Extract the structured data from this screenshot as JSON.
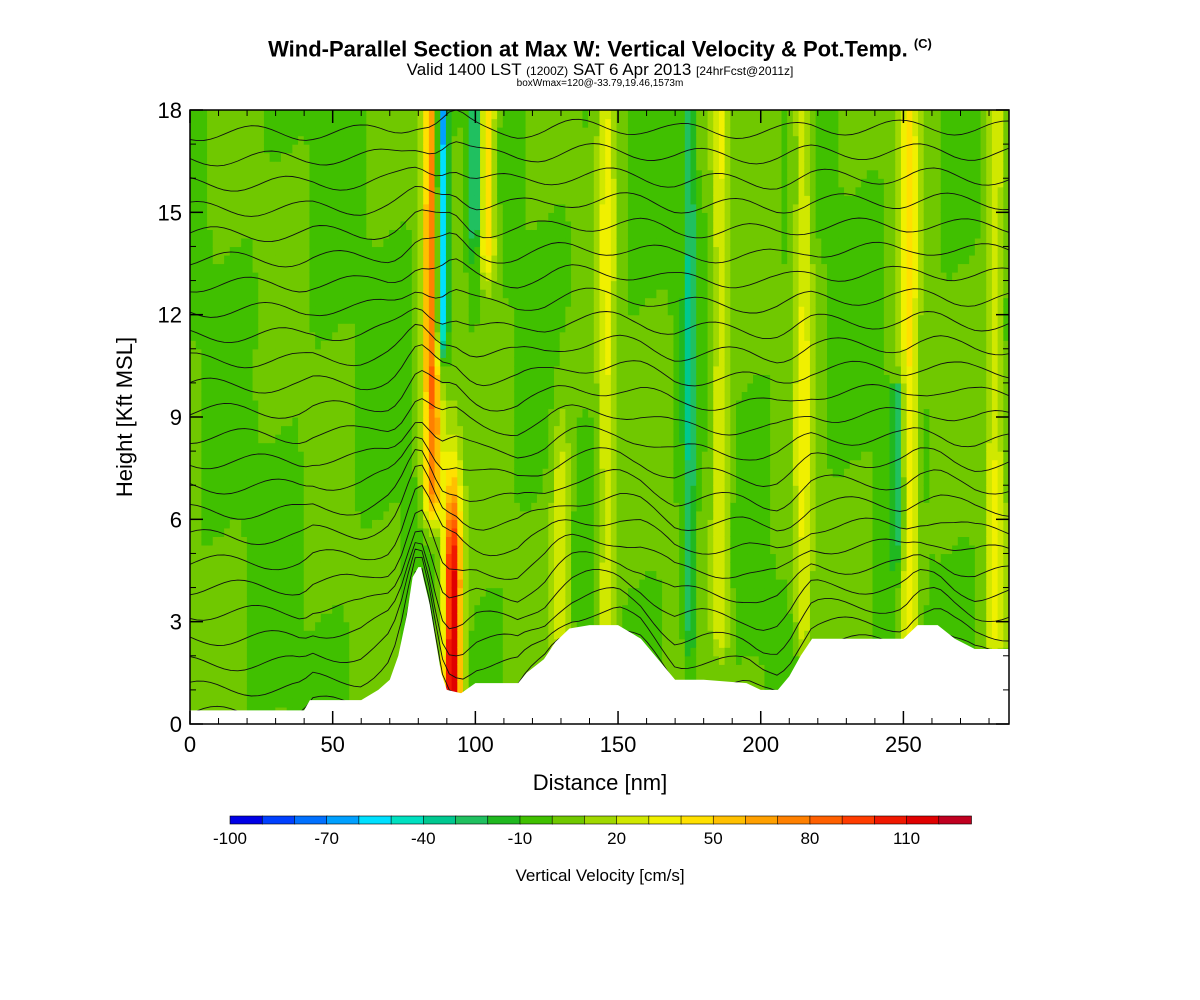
{
  "header": {
    "title": "Wind-Parallel Section at Max W: Vertical Velocity & Pot.Temp.",
    "title_mark": "(C)",
    "subtitle_a": "Valid 1400 LST",
    "subtitle_b": "(1200Z)",
    "subtitle_c": "SAT 6 Apr 2013",
    "subtitle_d": "[24hrFcst@2011z]",
    "subtitle2": "boxWmax=120@-33.79,19.46,1573m"
  },
  "chart_data": {
    "type": "heatmap",
    "xlabel": "Distance [nm]",
    "ylabel": "Height [Kft MSL]",
    "xlim": [
      0,
      287
    ],
    "ylim": [
      0,
      18
    ],
    "x_ticks": [
      0,
      50,
      100,
      150,
      200,
      250
    ],
    "y_ticks": [
      0,
      3,
      6,
      9,
      12,
      15,
      18
    ],
    "colorbar": {
      "label": "Vertical Velocity [cm/s]",
      "levels": [
        -100,
        -90,
        -80,
        -70,
        -60,
        -50,
        -40,
        -30,
        -20,
        -10,
        0,
        10,
        20,
        30,
        40,
        50,
        60,
        70,
        80,
        90,
        100,
        110,
        120,
        130
      ],
      "tick_labels": [
        "-100",
        "-70",
        "-40",
        "-10",
        "20",
        "50",
        "80",
        "110"
      ],
      "colors": [
        "#0000e6",
        "#0040ff",
        "#0070ff",
        "#00a0ff",
        "#00e0ff",
        "#00e0c0",
        "#00c890",
        "#20c060",
        "#20b820",
        "#40c000",
        "#70c800",
        "#a0d800",
        "#d0e800",
        "#f0f000",
        "#ffe000",
        "#ffc000",
        "#ffa000",
        "#ff8000",
        "#ff6000",
        "#ff3c00",
        "#f01800",
        "#e00000",
        "#c00020"
      ]
    },
    "terrain_kft": [
      [
        0,
        0.4
      ],
      [
        40,
        0.4
      ],
      [
        42,
        0.7
      ],
      [
        60,
        0.7
      ],
      [
        66,
        1.0
      ],
      [
        70,
        1.3
      ],
      [
        73,
        2.0
      ],
      [
        76,
        3.2
      ],
      [
        78,
        4.3
      ],
      [
        80,
        4.6
      ],
      [
        81,
        4.6
      ],
      [
        82,
        4.2
      ],
      [
        84,
        3.5
      ],
      [
        86,
        2.5
      ],
      [
        88,
        1.5
      ],
      [
        90,
        1.0
      ],
      [
        95,
        0.9
      ],
      [
        100,
        1.2
      ],
      [
        115,
        1.2
      ],
      [
        118,
        1.5
      ],
      [
        124,
        1.9
      ],
      [
        128,
        2.4
      ],
      [
        133,
        2.8
      ],
      [
        140,
        2.9
      ],
      [
        150,
        2.9
      ],
      [
        158,
        2.5
      ],
      [
        165,
        1.8
      ],
      [
        170,
        1.3
      ],
      [
        180,
        1.3
      ],
      [
        195,
        1.2
      ],
      [
        200,
        1.0
      ],
      [
        206,
        1.0
      ],
      [
        210,
        1.4
      ],
      [
        214,
        2.0
      ],
      [
        218,
        2.5
      ],
      [
        222,
        2.5
      ],
      [
        245,
        2.5
      ],
      [
        250,
        2.5
      ],
      [
        255,
        2.9
      ],
      [
        262,
        2.9
      ],
      [
        268,
        2.5
      ],
      [
        275,
        2.2
      ],
      [
        287,
        2.2
      ]
    ],
    "updraft_columns": [
      {
        "x": 92,
        "w_max": 120,
        "base_kft": 1,
        "peak_kft": 4
      },
      {
        "x": 85,
        "w_max": 80,
        "base_kft": 7,
        "peak_kft": 18
      },
      {
        "x": 104,
        "w_max": 50,
        "base_kft": 14,
        "peak_kft": 18
      },
      {
        "x": 130,
        "w_max": 30,
        "base_kft": 3,
        "peak_kft": 6
      },
      {
        "x": 146,
        "w_max": 30,
        "base_kft": 3,
        "peak_kft": 18
      },
      {
        "x": 186,
        "w_max": 30,
        "base_kft": 3,
        "peak_kft": 18
      },
      {
        "x": 215,
        "w_max": 30,
        "base_kft": 3,
        "peak_kft": 18
      },
      {
        "x": 252,
        "w_max": 40,
        "base_kft": 3,
        "peak_kft": 18
      },
      {
        "x": 282,
        "w_max": 30,
        "base_kft": 3,
        "peak_kft": 18
      }
    ],
    "downdraft_columns": [
      {
        "x": 88,
        "w_min": -90,
        "base_kft": 12,
        "peak_kft": 18
      },
      {
        "x": 100,
        "w_min": -40,
        "base_kft": 15,
        "peak_kft": 18
      },
      {
        "x": 175,
        "w_min": -30,
        "base_kft": 3,
        "peak_kft": 18
      },
      {
        "x": 248,
        "w_min": -30,
        "base_kft": 6,
        "peak_kft": 10
      }
    ]
  }
}
